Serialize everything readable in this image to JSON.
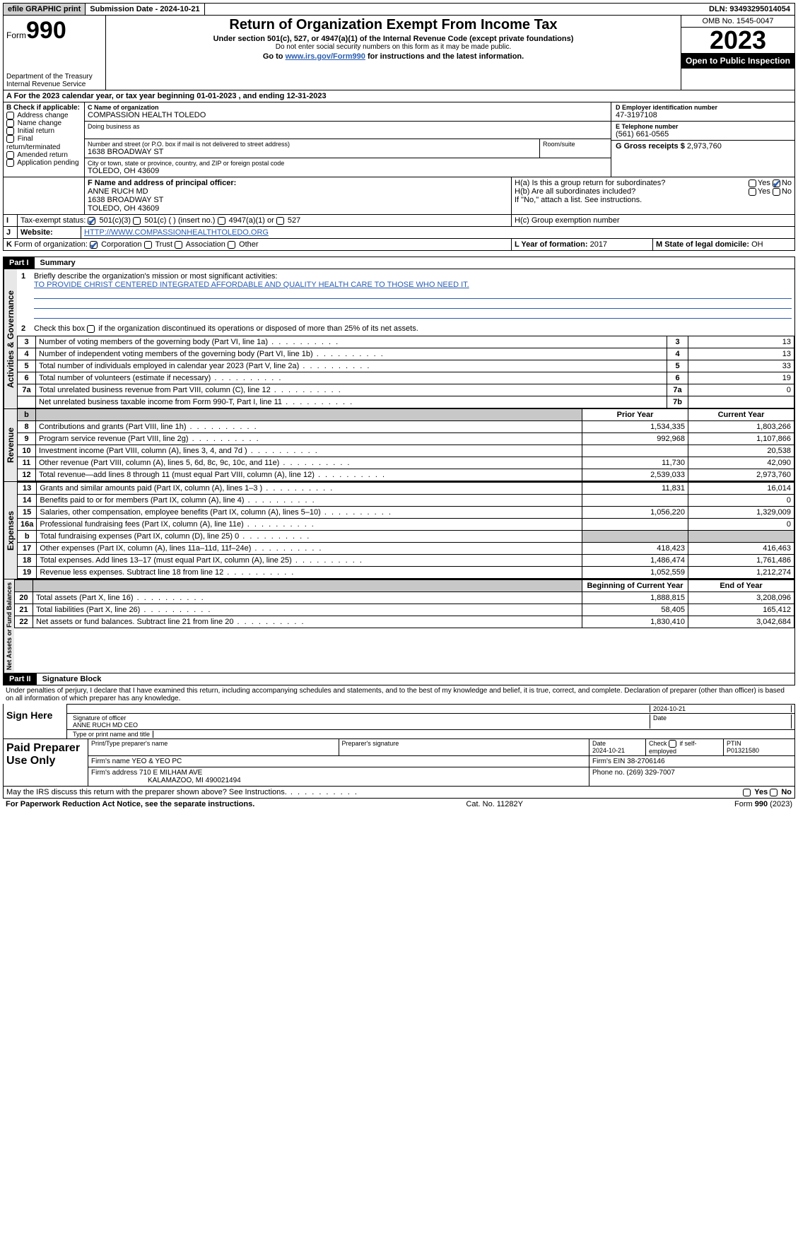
{
  "topbar": {
    "efile": "efile GRAPHIC print",
    "submission": "Submission Date - 2024-10-21",
    "dln": "DLN: 93493295014054"
  },
  "header": {
    "form_prefix": "Form",
    "form_num": "990",
    "dept": "Department of the Treasury",
    "irs": "Internal Revenue Service",
    "title": "Return of Organization Exempt From Income Tax",
    "sub1": "Under section 501(c), 527, or 4947(a)(1) of the Internal Revenue Code (except private foundations)",
    "sub2": "Do not enter social security numbers on this form as it may be made public.",
    "sub3_pre": "Go to ",
    "sub3_link": "www.irs.gov/Form990",
    "sub3_post": " for instructions and the latest information.",
    "omb": "OMB No. 1545-0047",
    "year": "2023",
    "inspect": "Open to Public Inspection"
  },
  "periodA": {
    "text_pre": "For the 2023 calendar year, or tax year beginning ",
    "begin": "01-01-2023",
    "mid": " , and ending ",
    "end": "12-31-2023"
  },
  "boxB": {
    "label": "B Check if applicable:",
    "items": [
      "Address change",
      "Name change",
      "Initial return",
      "Final return/terminated",
      "Amended return",
      "Application pending"
    ]
  },
  "boxC": {
    "name_label": "C Name of organization",
    "name": "COMPASSION HEALTH TOLEDO",
    "dba_label": "Doing business as",
    "street_label": "Number and street (or P.O. box if mail is not delivered to street address)",
    "room_label": "Room/suite",
    "street": "1638 BROADWAY ST",
    "city_label": "City or town, state or province, country, and ZIP or foreign postal code",
    "city": "TOLEDO, OH  43609"
  },
  "boxD": {
    "label": "D Employer identification number",
    "value": "47-3197108"
  },
  "boxE": {
    "label": "E Telephone number",
    "value": "(561) 661-0565"
  },
  "boxG": {
    "label": "G Gross receipts $",
    "value": "2,973,760"
  },
  "boxF": {
    "label": "F  Name and address of principal officer:",
    "name": "ANNE RUCH MD",
    "addr1": "1638 BROADWAY ST",
    "addr2": "TOLEDO, OH  43609"
  },
  "boxH": {
    "a": "H(a)  Is this a group return for subordinates?",
    "b": "H(b)  Are all subordinates included?",
    "note": "If \"No,\" attach a list. See instructions.",
    "c": "H(c)  Group exemption number",
    "yes": "Yes",
    "no": "No"
  },
  "boxI": {
    "label": "Tax-exempt status:",
    "c3": "501(c)(3)",
    "c": "501(c) (  ) (insert no.)",
    "a1": "4947(a)(1) or",
    "s527": "527"
  },
  "boxJ": {
    "label": "Website:",
    "value": "HTTP://WWW.COMPASSIONHEALTHTOLEDO.ORG"
  },
  "boxK": {
    "label": "Form of organization:",
    "corp": "Corporation",
    "trust": "Trust",
    "assoc": "Association",
    "other": "Other"
  },
  "boxL": {
    "label": "L Year of formation:",
    "value": "2017"
  },
  "boxM": {
    "label": "M State of legal domicile:",
    "value": "OH"
  },
  "part1": {
    "hdr": "Part I",
    "title": "Summary"
  },
  "summary": {
    "q1_label": "Briefly describe the organization's mission or most significant activities:",
    "q1_text": "TO PROVIDE CHRIST CENTERED INTEGRATED AFFORDABLE AND QUALITY HEALTH CARE TO THOSE WHO NEED IT.",
    "q2": "Check this box      if the organization discontinued its operations or disposed of more than 25% of its net assets."
  },
  "gov_lines": [
    {
      "n": "3",
      "d": "Number of voting members of the governing body (Part VI, line 1a)",
      "b": "3",
      "v": "13"
    },
    {
      "n": "4",
      "d": "Number of independent voting members of the governing body (Part VI, line 1b)",
      "b": "4",
      "v": "13"
    },
    {
      "n": "5",
      "d": "Total number of individuals employed in calendar year 2023 (Part V, line 2a)",
      "b": "5",
      "v": "33"
    },
    {
      "n": "6",
      "d": "Total number of volunteers (estimate if necessary)",
      "b": "6",
      "v": "19"
    },
    {
      "n": "7a",
      "d": "Total unrelated business revenue from Part VIII, column (C), line 12",
      "b": "7a",
      "v": "0"
    },
    {
      "n": "",
      "d": "Net unrelated business taxable income from Form 990-T, Part I, line 11",
      "b": "7b",
      "v": ""
    }
  ],
  "col_hdr": {
    "prior": "Prior Year",
    "current": "Current Year",
    "boy": "Beginning of Current Year",
    "eoy": "End of Year"
  },
  "rev_lines": [
    {
      "n": "8",
      "d": "Contributions and grants (Part VIII, line 1h)",
      "p": "1,534,335",
      "c": "1,803,266"
    },
    {
      "n": "9",
      "d": "Program service revenue (Part VIII, line 2g)",
      "p": "992,968",
      "c": "1,107,866"
    },
    {
      "n": "10",
      "d": "Investment income (Part VIII, column (A), lines 3, 4, and 7d )",
      "p": "",
      "c": "20,538"
    },
    {
      "n": "11",
      "d": "Other revenue (Part VIII, column (A), lines 5, 6d, 8c, 9c, 10c, and 11e)",
      "p": "11,730",
      "c": "42,090"
    },
    {
      "n": "12",
      "d": "Total revenue—add lines 8 through 11 (must equal Part VIII, column (A), line 12)",
      "p": "2,539,033",
      "c": "2,973,760"
    }
  ],
  "exp_lines": [
    {
      "n": "13",
      "d": "Grants and similar amounts paid (Part IX, column (A), lines 1–3 )",
      "p": "11,831",
      "c": "16,014"
    },
    {
      "n": "14",
      "d": "Benefits paid to or for members (Part IX, column (A), line 4)",
      "p": "",
      "c": "0"
    },
    {
      "n": "15",
      "d": "Salaries, other compensation, employee benefits (Part IX, column (A), lines 5–10)",
      "p": "1,056,220",
      "c": "1,329,009"
    },
    {
      "n": "16a",
      "d": "Professional fundraising fees (Part IX, column (A), line 11e)",
      "p": "",
      "c": "0"
    },
    {
      "n": "b",
      "d": "Total fundraising expenses (Part IX, column (D), line 25) 0",
      "p": "shade",
      "c": "shade"
    },
    {
      "n": "17",
      "d": "Other expenses (Part IX, column (A), lines 11a–11d, 11f–24e)",
      "p": "418,423",
      "c": "416,463"
    },
    {
      "n": "18",
      "d": "Total expenses. Add lines 13–17 (must equal Part IX, column (A), line 25)",
      "p": "1,486,474",
      "c": "1,761,486"
    },
    {
      "n": "19",
      "d": "Revenue less expenses. Subtract line 18 from line 12",
      "p": "1,052,559",
      "c": "1,212,274"
    }
  ],
  "na_lines": [
    {
      "n": "20",
      "d": "Total assets (Part X, line 16)",
      "p": "1,888,815",
      "c": "3,208,096"
    },
    {
      "n": "21",
      "d": "Total liabilities (Part X, line 26)",
      "p": "58,405",
      "c": "165,412"
    },
    {
      "n": "22",
      "d": "Net assets or fund balances. Subtract line 21 from line 20",
      "p": "1,830,410",
      "c": "3,042,684"
    }
  ],
  "vlabels": {
    "gov": "Activities & Governance",
    "rev": "Revenue",
    "exp": "Expenses",
    "na": "Net Assets or Fund Balances"
  },
  "part2": {
    "hdr": "Part II",
    "title": "Signature Block"
  },
  "perjury": "Under penalties of perjury, I declare that I have examined this return, including accompanying schedules and statements, and to the best of my knowledge and belief, it is true, correct, and complete. Declaration of preparer (other than officer) is based on all information of which preparer has any knowledge.",
  "sign": {
    "here": "Sign Here",
    "sig_officer": "Signature of officer",
    "officer": "ANNE RUCH MD CEO",
    "type_title": "Type or print name and title",
    "date_label": "Date",
    "date": "2024-10-21"
  },
  "paid": {
    "label": "Paid Preparer Use Only",
    "print_name": "Print/Type preparer's name",
    "prep_sig": "Preparer's signature",
    "date_l": "Date",
    "date": "2024-10-21",
    "check_self": "Check        if self-employed",
    "ptin_l": "PTIN",
    "ptin": "P01321580",
    "firm_name_l": "Firm's name",
    "firm_name": "YEO & YEO PC",
    "firm_ein_l": "Firm's EIN",
    "firm_ein": "38-2706146",
    "firm_addr_l": "Firm's address",
    "firm_addr1": "710 E MILHAM AVE",
    "firm_addr2": "KALAMAZOO, MI  490021494",
    "phone_l": "Phone no.",
    "phone": "(269) 329-7007"
  },
  "discuss": "May the IRS discuss this return with the preparer shown above? See Instructions.",
  "footer": {
    "left": "For Paperwork Reduction Act Notice, see the separate instructions.",
    "mid": "Cat. No. 11282Y",
    "right_pre": "Form ",
    "right_b": "990",
    "right_post": " (2023)"
  },
  "colors": {
    "link": "#2a5db0",
    "shade": "#c8c8c8",
    "vlabel_bg": "#e8e8e8"
  }
}
